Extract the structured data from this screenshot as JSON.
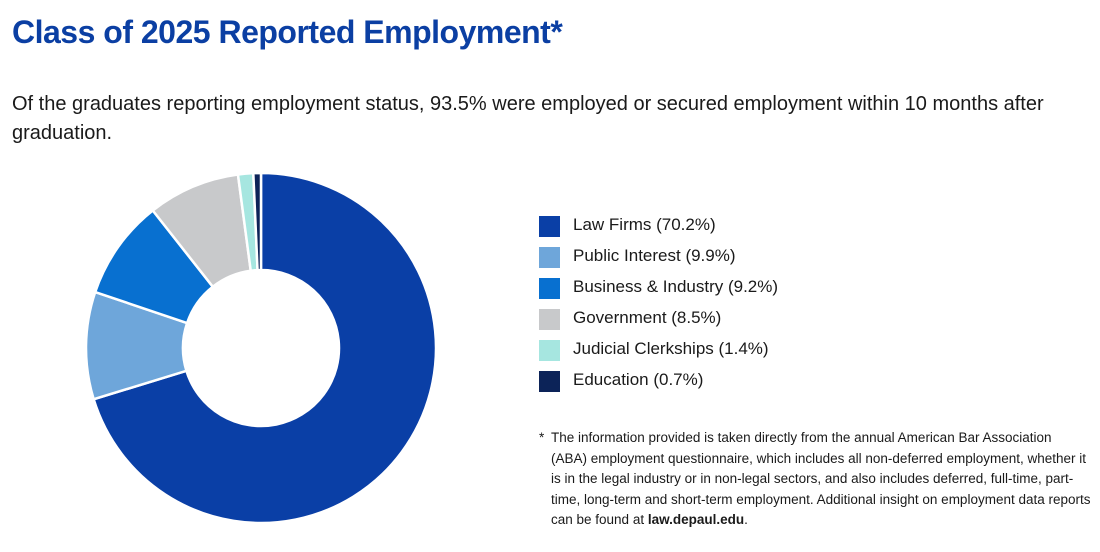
{
  "page": {
    "title": "Class of 2025 Reported Employment*",
    "intro": "Of the graduates reporting employment status, 93.5% were employed or secured employment within 10 months after graduation."
  },
  "chart_data": {
    "type": "pie",
    "donut": true,
    "title": "",
    "legend_position": "right",
    "slices": [
      {
        "label": "Law Firms (70.2%)",
        "value": 70.2,
        "color": "#0a3fa6"
      },
      {
        "label": "Public Interest (9.9%)",
        "value": 9.9,
        "color": "#6ea6da"
      },
      {
        "label": "Business & Industry (9.2%)",
        "value": 9.2,
        "color": "#0870d0"
      },
      {
        "label": "Government (8.5%)",
        "value": 8.5,
        "color": "#c8c9cb"
      },
      {
        "label": "Judicial Clerkships (1.4%)",
        "value": 1.4,
        "color": "#a6e6e0"
      },
      {
        "label": "Education (0.7%)",
        "value": 0.7,
        "color": "#0c2358"
      }
    ]
  },
  "footnote": {
    "star": "*",
    "text": "The information provided is taken directly from the annual American Bar Association (ABA) employment questionnaire, which includes all non-deferred employment, whether it is in the legal industry or in non-legal sectors, and also includes deferred, full-time, part-time, long-term and short-term employment. Additional insight on employment data reports can be found at",
    "link_text": "law.depaul.edu",
    "end": "."
  }
}
